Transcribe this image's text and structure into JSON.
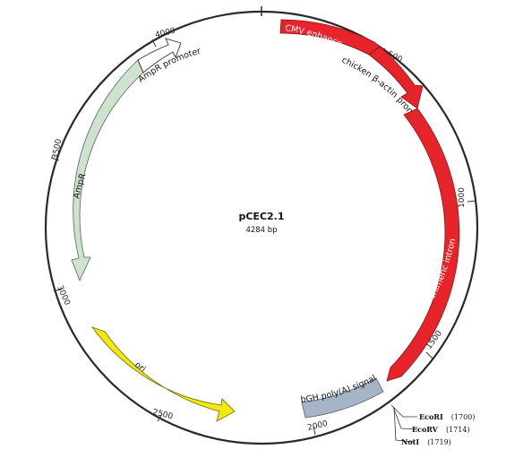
{
  "plasmid": {
    "name": "pCEC2.1",
    "size_label": "4284 bp"
  },
  "position_ticks": [
    "500",
    "1000",
    "1500",
    "2000",
    "2500",
    "3000",
    "3500",
    "4000"
  ],
  "features": [
    {
      "id": "cmv",
      "label": "CMV enhancer",
      "color": "#e8242b"
    },
    {
      "id": "actin",
      "label": "chicken β-actin promoter",
      "color": "#e8242b"
    },
    {
      "id": "intron",
      "label": "chimeric intron",
      "color": "#e8242b"
    },
    {
      "id": "bgh",
      "label": "bGH poly(A) signal",
      "color": "#a6b4c8"
    },
    {
      "id": "ori",
      "label": "ori",
      "color": "#f2ea0e"
    },
    {
      "id": "ampr",
      "label": "AmpR",
      "color": "#cfe1cf"
    },
    {
      "id": "ampr_promoter",
      "label": "AmpR promoter",
      "color": "#ffffff"
    }
  ],
  "restriction_sites": [
    {
      "name": "EcoRI",
      "position": "(1700)"
    },
    {
      "name": "EcoRV",
      "position": "(1714)"
    },
    {
      "name": "NotI",
      "position": "(1719)"
    }
  ]
}
